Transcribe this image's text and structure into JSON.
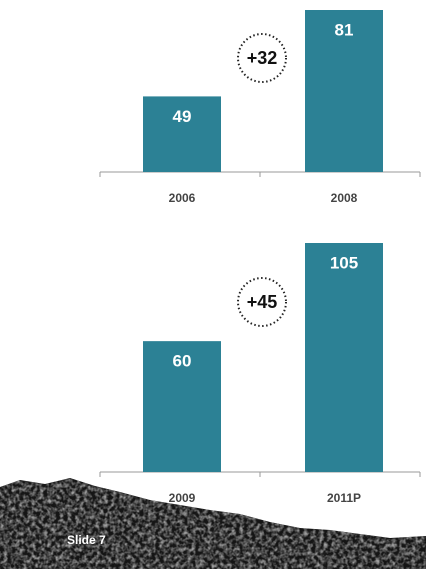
{
  "chart_data": [
    {
      "type": "bar",
      "categories": [
        "2006",
        "2008"
      ],
      "values": [
        49,
        81
      ],
      "color": "#2c8195",
      "annotation": "+32",
      "ylim": [
        21,
        81
      ]
    },
    {
      "type": "bar",
      "categories": [
        "2009",
        "2011P"
      ],
      "values": [
        60,
        105
      ],
      "color": "#2c8195",
      "annotation": "+45",
      "ylim": [
        0,
        105
      ]
    }
  ],
  "footer": {
    "slide_label": "Slide 7"
  }
}
